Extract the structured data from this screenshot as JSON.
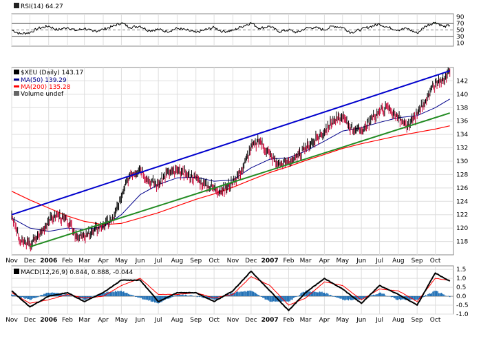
{
  "chart_data": [
    {
      "type": "line",
      "panel": "rsi",
      "title": "RSI(14) 64.27",
      "ylim": [
        0,
        100
      ],
      "yticks": [
        10,
        30,
        50,
        70,
        90
      ],
      "reference_lines": [
        30,
        50,
        70
      ],
      "grid": true,
      "series": [
        {
          "name": "RSI(14)",
          "x": [
            "2005-11-01",
            "2005-11-15",
            "2005-12-01",
            "2005-12-15",
            "2006-01-01",
            "2006-01-15",
            "2006-02-01",
            "2006-02-15",
            "2006-03-01",
            "2006-03-15",
            "2006-04-01",
            "2006-04-15",
            "2006-05-01",
            "2006-05-15",
            "2006-06-01",
            "2006-06-15",
            "2006-07-01",
            "2006-07-15",
            "2006-08-01",
            "2006-08-15",
            "2006-09-01",
            "2006-09-15",
            "2006-10-01",
            "2006-10-15",
            "2006-11-01",
            "2006-11-15",
            "2006-12-01",
            "2006-12-15",
            "2007-01-01",
            "2007-01-15",
            "2007-02-01",
            "2007-02-15",
            "2007-03-01",
            "2007-03-15",
            "2007-04-01",
            "2007-04-15",
            "2007-05-01",
            "2007-05-15",
            "2007-06-01",
            "2007-06-15",
            "2007-07-01",
            "2007-07-15",
            "2007-08-01",
            "2007-08-15",
            "2007-09-01",
            "2007-09-15",
            "2007-10-01",
            "2007-10-15",
            "2007-10-25"
          ],
          "values": [
            50,
            38,
            42,
            55,
            62,
            50,
            58,
            48,
            55,
            45,
            52,
            60,
            72,
            58,
            62,
            48,
            52,
            45,
            55,
            50,
            42,
            50,
            58,
            45,
            48,
            60,
            72,
            55,
            62,
            45,
            50,
            42,
            55,
            58,
            50,
            62,
            58,
            42,
            52,
            60,
            68,
            58,
            50,
            55,
            40,
            62,
            74,
            60,
            64.27
          ]
        }
      ]
    },
    {
      "type": "line",
      "panel": "price",
      "title": "$XEU (Daily) 143.17",
      "ylim": [
        116,
        144
      ],
      "yticks": [
        118,
        120,
        122,
        124,
        126,
        128,
        130,
        132,
        134,
        136,
        138,
        140,
        142
      ],
      "grid": true,
      "legend": "top-left",
      "legend_entries": [
        {
          "label": "$XEU (Daily) 143.17",
          "color": "#000000"
        },
        {
          "label": "MA(50) 139.29",
          "color": "#00008b"
        },
        {
          "label": "MA(200) 135.28",
          "color": "#ff0000"
        },
        {
          "label": "Volume undef",
          "color": "#000000"
        }
      ],
      "series": [
        {
          "name": "$XEU (Daily)",
          "color": "#000000",
          "x": [
            "2005-11-01",
            "2005-11-15",
            "2005-12-01",
            "2005-12-15",
            "2006-01-01",
            "2006-01-15",
            "2006-02-01",
            "2006-02-15",
            "2006-03-01",
            "2006-03-15",
            "2006-04-01",
            "2006-04-15",
            "2006-05-01",
            "2006-05-15",
            "2006-06-01",
            "2006-06-15",
            "2006-07-01",
            "2006-07-15",
            "2006-08-01",
            "2006-08-15",
            "2006-09-01",
            "2006-09-15",
            "2006-10-01",
            "2006-10-15",
            "2006-11-01",
            "2006-11-15",
            "2006-12-01",
            "2006-12-15",
            "2007-01-01",
            "2007-01-15",
            "2007-02-01",
            "2007-02-15",
            "2007-03-01",
            "2007-03-15",
            "2007-04-01",
            "2007-04-15",
            "2007-05-01",
            "2007-05-15",
            "2007-06-01",
            "2007-06-15",
            "2007-07-01",
            "2007-07-15",
            "2007-08-01",
            "2007-08-15",
            "2007-09-01",
            "2007-09-15",
            "2007-10-01",
            "2007-10-15",
            "2007-10-25"
          ],
          "values": [
            122,
            118,
            117.5,
            118.8,
            121,
            122,
            121,
            119,
            118.5,
            119.5,
            120.5,
            121,
            124.5,
            128,
            129,
            127,
            126.5,
            128.2,
            128.5,
            128,
            127.5,
            126.5,
            126,
            125.5,
            127,
            128.5,
            132,
            133,
            131,
            129.5,
            130,
            130.5,
            132,
            133,
            134.5,
            136,
            136.5,
            135,
            134.5,
            136,
            137.5,
            138,
            136.5,
            135,
            137,
            139,
            141.5,
            142,
            143.17
          ]
        },
        {
          "name": "MA(50)",
          "color": "#00008b",
          "x": [
            "2005-11-01",
            "2005-12-01",
            "2006-01-01",
            "2006-02-01",
            "2006-03-01",
            "2006-04-01",
            "2006-05-01",
            "2006-06-01",
            "2006-07-01",
            "2006-08-01",
            "2006-09-01",
            "2006-10-01",
            "2006-11-01",
            "2006-12-01",
            "2007-01-01",
            "2007-02-01",
            "2007-03-01",
            "2007-04-01",
            "2007-05-01",
            "2007-06-01",
            "2007-07-01",
            "2007-08-01",
            "2007-09-01",
            "2007-10-01",
            "2007-10-25"
          ],
          "values": [
            121.5,
            120,
            119.5,
            120,
            119.8,
            120.2,
            122,
            125,
            126.5,
            127.5,
            127.6,
            127,
            127.2,
            129,
            130.3,
            130.5,
            131.5,
            133,
            134.5,
            135,
            135.8,
            136.5,
            136.8,
            138,
            139.29
          ]
        },
        {
          "name": "MA(200)",
          "color": "#ff0000",
          "x": [
            "2005-11-01",
            "2005-12-01",
            "2006-01-01",
            "2006-02-01",
            "2006-03-01",
            "2006-04-01",
            "2006-05-01",
            "2006-06-01",
            "2006-07-01",
            "2006-08-01",
            "2006-09-01",
            "2006-10-01",
            "2006-11-01",
            "2006-12-01",
            "2007-01-01",
            "2007-02-01",
            "2007-03-01",
            "2007-04-01",
            "2007-05-01",
            "2007-06-01",
            "2007-07-01",
            "2007-08-01",
            "2007-09-01",
            "2007-10-01",
            "2007-10-25"
          ],
          "values": [
            125.5,
            124.2,
            123,
            121.8,
            121,
            120.5,
            120.7,
            121.5,
            122.3,
            123.3,
            124.3,
            125.1,
            126.1,
            127.2,
            128.3,
            129.2,
            130.1,
            131,
            131.9,
            132.6,
            133.2,
            133.8,
            134.3,
            134.8,
            135.28
          ]
        }
      ],
      "trendlines": [
        {
          "name": "upper-channel",
          "color": "#0000cd",
          "x": [
            "2005-11-01",
            "2007-10-25"
          ],
          "values": [
            122,
            143.5
          ]
        },
        {
          "name": "lower-channel",
          "color": "#228b22",
          "x": [
            "2005-12-01",
            "2007-10-25"
          ],
          "values": [
            117.2,
            137.2
          ]
        }
      ]
    },
    {
      "type": "bar",
      "panel": "macd",
      "title": "MACD(12,26,9) 0.844, 0.888, -0.044",
      "ylim": [
        -1.0,
        1.7
      ],
      "yticks": [
        -1.0,
        -0.5,
        0.0,
        0.5,
        1.0,
        1.5
      ],
      "grid": true,
      "series": [
        {
          "name": "MACD(12,26,9)",
          "color": "#000000",
          "x": [
            "2005-11-01",
            "2005-12-01",
            "2006-01-01",
            "2006-02-01",
            "2006-03-01",
            "2006-04-01",
            "2006-05-01",
            "2006-06-01",
            "2006-07-01",
            "2006-08-01",
            "2006-09-01",
            "2006-10-01",
            "2006-11-01",
            "2006-12-01",
            "2007-01-01",
            "2007-02-01",
            "2007-03-01",
            "2007-04-01",
            "2007-05-01",
            "2007-06-01",
            "2007-07-01",
            "2007-08-01",
            "2007-09-01",
            "2007-10-01",
            "2007-10-25"
          ],
          "values": [
            0.3,
            -0.6,
            0.0,
            0.2,
            -0.3,
            0.2,
            0.9,
            0.9,
            -0.3,
            0.2,
            0.2,
            -0.3,
            0.3,
            1.4,
            0.3,
            -0.8,
            0.2,
            1.0,
            0.4,
            -0.4,
            0.6,
            0.1,
            -0.5,
            1.3,
            0.844
          ]
        },
        {
          "name": "Signal",
          "color": "#ff0000",
          "x": [
            "2005-11-01",
            "2005-12-01",
            "2006-01-01",
            "2006-02-01",
            "2006-03-01",
            "2006-04-01",
            "2006-05-01",
            "2006-06-01",
            "2006-07-01",
            "2006-08-01",
            "2006-09-01",
            "2006-10-01",
            "2006-11-01",
            "2006-12-01",
            "2007-01-01",
            "2007-02-01",
            "2007-03-01",
            "2007-04-01",
            "2007-05-01",
            "2007-06-01",
            "2007-07-01",
            "2007-08-01",
            "2007-09-01",
            "2007-10-01",
            "2007-10-25"
          ],
          "values": [
            0.2,
            -0.4,
            -0.2,
            0.1,
            -0.1,
            0.0,
            0.6,
            1.0,
            0.1,
            0.1,
            0.2,
            -0.1,
            0.1,
            1.1,
            0.6,
            -0.5,
            -0.1,
            0.8,
            0.6,
            -0.2,
            0.4,
            0.3,
            -0.3,
            1.0,
            0.888
          ]
        },
        {
          "name": "Histogram",
          "color": "#1f6fb5",
          "x": [
            "2005-11-01",
            "2005-12-01",
            "2006-01-01",
            "2006-02-01",
            "2006-03-01",
            "2006-04-01",
            "2006-05-01",
            "2006-06-01",
            "2006-07-01",
            "2006-08-01",
            "2006-09-01",
            "2006-10-01",
            "2006-11-01",
            "2006-12-01",
            "2007-01-01",
            "2007-02-01",
            "2007-03-01",
            "2007-04-01",
            "2007-05-01",
            "2007-06-01",
            "2007-07-01",
            "2007-08-01",
            "2007-09-01",
            "2007-10-01",
            "2007-10-25"
          ],
          "values": [
            0.1,
            -0.2,
            0.2,
            0.1,
            -0.2,
            0.2,
            0.3,
            -0.1,
            -0.4,
            0.1,
            0.0,
            -0.2,
            0.2,
            0.3,
            -0.3,
            -0.3,
            0.3,
            0.2,
            -0.2,
            -0.2,
            0.2,
            -0.2,
            -0.2,
            0.3,
            -0.044
          ]
        }
      ]
    }
  ],
  "x_axis": {
    "labels": [
      {
        "text": "Nov",
        "date": "2005-11-01",
        "bold": false
      },
      {
        "text": "Dec",
        "date": "2005-12-01",
        "bold": false
      },
      {
        "text": "2006",
        "date": "2006-01-01",
        "bold": true
      },
      {
        "text": "Feb",
        "date": "2006-02-01",
        "bold": false
      },
      {
        "text": "Mar",
        "date": "2006-03-01",
        "bold": false
      },
      {
        "text": "Apr",
        "date": "2006-04-01",
        "bold": false
      },
      {
        "text": "May",
        "date": "2006-05-01",
        "bold": false
      },
      {
        "text": "Jun",
        "date": "2006-06-01",
        "bold": false
      },
      {
        "text": "Jul",
        "date": "2006-07-01",
        "bold": false
      },
      {
        "text": "Aug",
        "date": "2006-08-01",
        "bold": false
      },
      {
        "text": "Sep",
        "date": "2006-09-01",
        "bold": false
      },
      {
        "text": "Oct",
        "date": "2006-10-01",
        "bold": false
      },
      {
        "text": "Nov",
        "date": "2006-11-01",
        "bold": false
      },
      {
        "text": "Dec",
        "date": "2006-12-01",
        "bold": false
      },
      {
        "text": "2007",
        "date": "2007-01-01",
        "bold": true
      },
      {
        "text": "Feb",
        "date": "2007-02-01",
        "bold": false
      },
      {
        "text": "Mar",
        "date": "2007-03-01",
        "bold": false
      },
      {
        "text": "Apr",
        "date": "2007-04-01",
        "bold": false
      },
      {
        "text": "May",
        "date": "2007-05-01",
        "bold": false
      },
      {
        "text": "Jun",
        "date": "2007-06-01",
        "bold": false
      },
      {
        "text": "Jul",
        "date": "2007-07-01",
        "bold": false
      },
      {
        "text": "Aug",
        "date": "2007-08-01",
        "bold": false
      },
      {
        "text": "Sep",
        "date": "2007-09-01",
        "bold": false
      },
      {
        "text": "Oct",
        "date": "2007-10-01",
        "bold": false
      }
    ],
    "range": [
      "2005-11-01",
      "2007-10-31"
    ]
  },
  "colors": {
    "price": "#000000",
    "price_down": "#cc0033",
    "ma50": "#00008b",
    "ma200": "#ff0000",
    "upper_trend": "#0000cd",
    "lower_trend": "#228b22",
    "rsi_fill": "#5f8f5f",
    "macd_hist": "#1f6fb5",
    "grid": "#dddddd"
  }
}
